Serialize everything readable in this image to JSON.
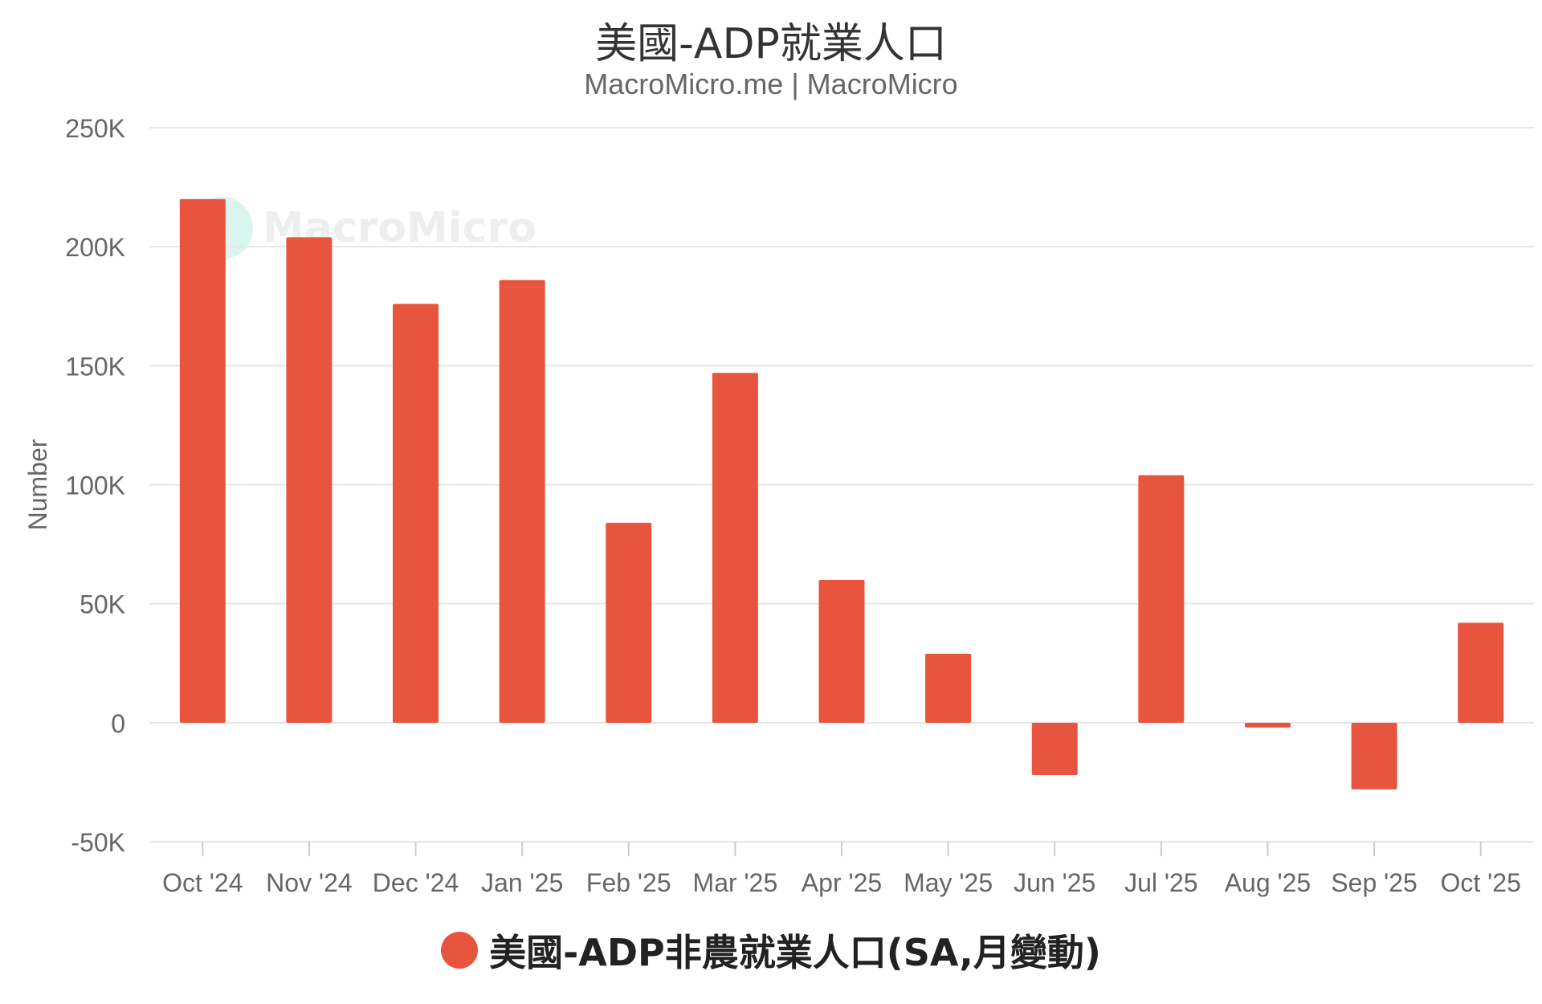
{
  "chart_data": {
    "type": "bar",
    "title": "美國-ADP就業人口",
    "subtitle": "MacroMicro.me | MacroMicro",
    "ylabel": "Number",
    "xlabel": "",
    "ylim": [
      -50000,
      250000
    ],
    "yticks": [
      -50000,
      0,
      50000,
      100000,
      150000,
      200000,
      250000
    ],
    "ytick_labels": [
      "-50K",
      "0",
      "50K",
      "100K",
      "150K",
      "200K",
      "250K"
    ],
    "categories": [
      "Oct '24",
      "Nov '24",
      "Dec '24",
      "Jan '25",
      "Feb '25",
      "Mar '25",
      "Apr '25",
      "May '25",
      "Jun '25",
      "Jul '25",
      "Aug '25",
      "Sep '25",
      "Oct '25"
    ],
    "series": [
      {
        "name": "美國-ADP非農就業人口(SA,月變動)",
        "color": "#e8553e",
        "values": [
          220000,
          204000,
          176000,
          186000,
          84000,
          147000,
          60000,
          29000,
          -22000,
          104000,
          -2000,
          -28000,
          42000
        ]
      }
    ],
    "grid": true,
    "legend_position": "bottom-center"
  },
  "watermark": {
    "text": "MacroMicro"
  }
}
